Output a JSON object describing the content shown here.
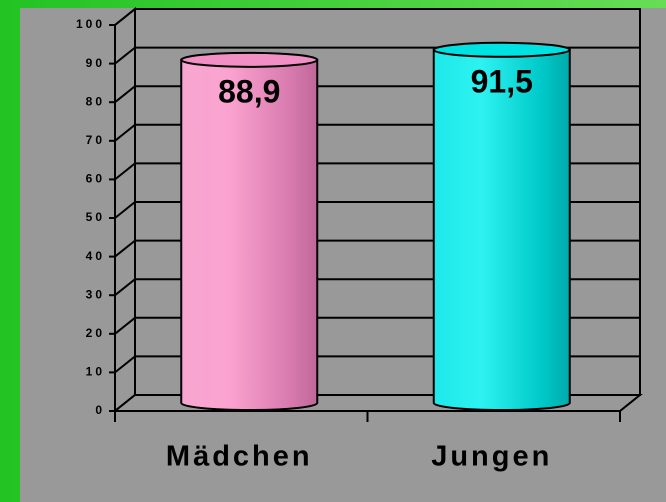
{
  "chart_data": {
    "type": "bar",
    "categories": [
      "Mädchen",
      "Jungen"
    ],
    "values": [
      88.9,
      91.5
    ],
    "value_labels": [
      "88,9",
      "91,5"
    ],
    "colors": [
      "#f28fc4",
      "#00e2e2"
    ],
    "ylim": [
      0,
      100
    ],
    "yticks": [
      0,
      10,
      20,
      30,
      40,
      50,
      60,
      70,
      80,
      90,
      100
    ],
    "grid": true
  }
}
